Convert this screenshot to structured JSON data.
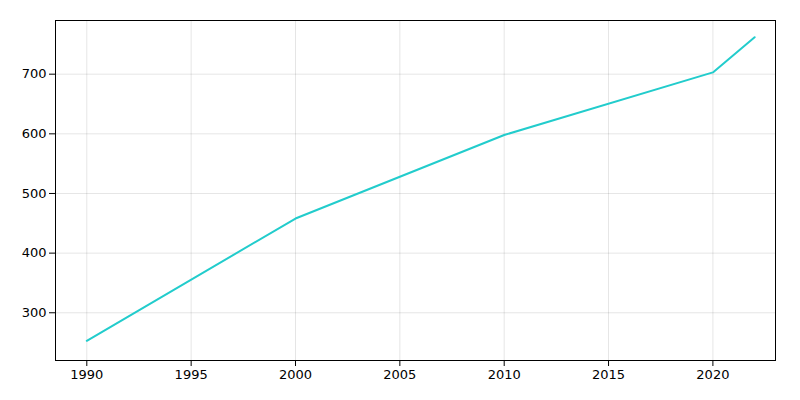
{
  "chart_data": {
    "type": "line",
    "x": [
      1990,
      2000,
      2010,
      2020,
      2022
    ],
    "values": [
      253,
      458,
      598,
      703,
      762
    ],
    "color": "#22CCCC",
    "xlim": [
      1988.5,
      2023
    ],
    "xticks": [
      1990,
      1995,
      2000,
      2005,
      2010,
      2015,
      2020
    ],
    "ylim": [
      220,
      790
    ],
    "yticks": [
      300,
      400,
      500,
      600,
      700
    ],
    "grid": true
  }
}
